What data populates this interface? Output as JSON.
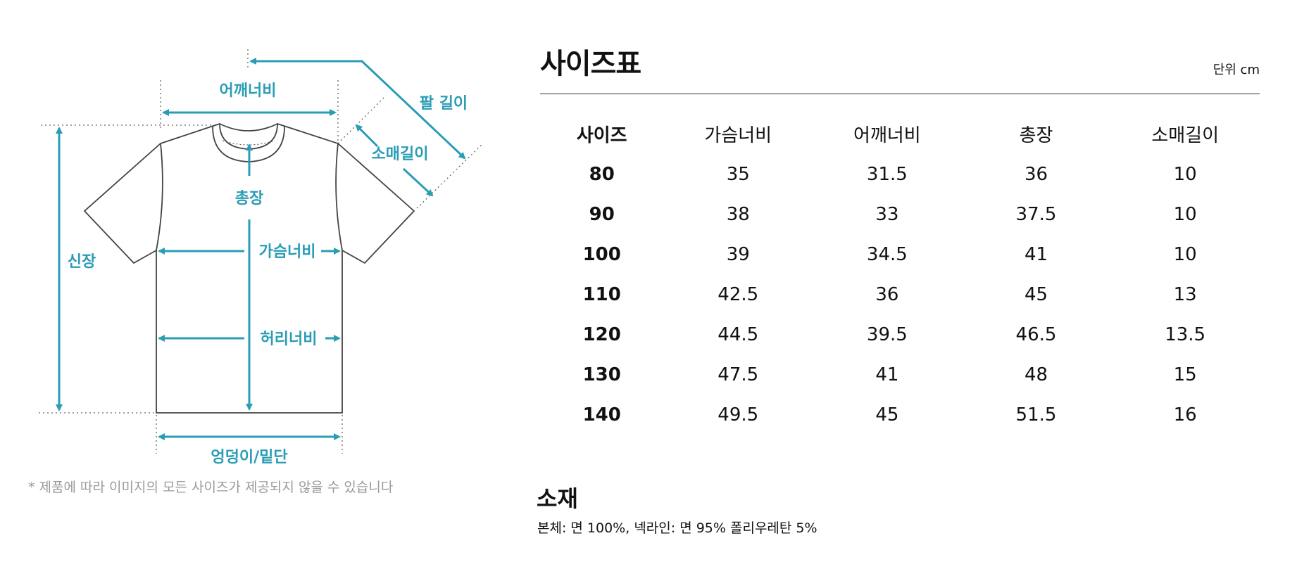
{
  "diagram": {
    "labels": {
      "shoulder_width": "어깨너비",
      "arm_length": "팔 길이",
      "sleeve_length": "소매길이",
      "total_length": "총장",
      "height": "신장",
      "chest_width": "가슴너비",
      "waist_width": "허리너비",
      "hem_width": "엉덩이/밑단"
    },
    "accent_color": "#2a9db5"
  },
  "note": "* 제품에 따라 이미지의 모든 사이즈가 제공되지 않을 수 있습니다",
  "size_chart": {
    "title": "사이즈표",
    "unit": "단위 cm",
    "headers": [
      "사이즈",
      "가슴너비",
      "어깨너비",
      "총장",
      "소매길이"
    ],
    "rows": [
      [
        "80",
        "35",
        "31.5",
        "36",
        "10"
      ],
      [
        "90",
        "38",
        "33",
        "37.5",
        "10"
      ],
      [
        "100",
        "39",
        "34.5",
        "41",
        "10"
      ],
      [
        "110",
        "42.5",
        "36",
        "45",
        "13"
      ],
      [
        "120",
        "44.5",
        "39.5",
        "46.5",
        "13.5"
      ],
      [
        "130",
        "47.5",
        "41",
        "48",
        "15"
      ],
      [
        "140",
        "49.5",
        "45",
        "51.5",
        "16"
      ]
    ]
  },
  "material": {
    "title": "소재",
    "text": "본체: 면 100%, 넥라인: 면 95% 폴리우레탄 5%"
  }
}
